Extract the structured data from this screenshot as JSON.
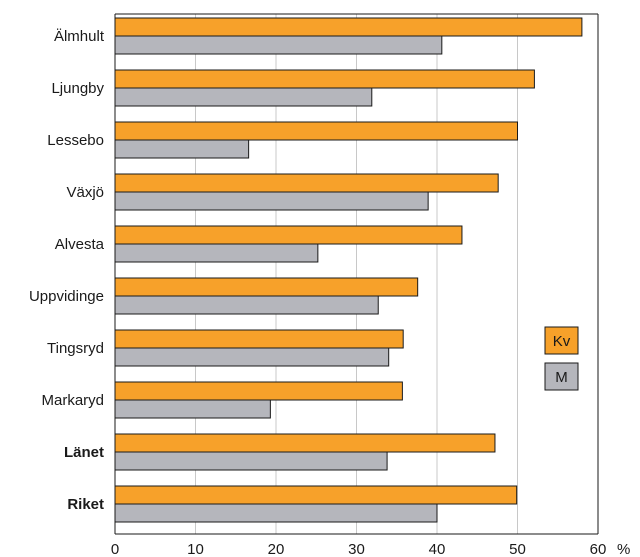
{
  "chart_data": {
    "type": "bar",
    "orientation": "horizontal",
    "categories": [
      "Älmhult",
      "Ljungby",
      "Lessebo",
      "Växjö",
      "Alvesta",
      "Uppvidinge",
      "Tingsryd",
      "Markaryd",
      "Länet",
      "Riket"
    ],
    "bold_categories": [
      "Länet",
      "Riket"
    ],
    "series": [
      {
        "name": "Kv",
        "color": "#f7a12a",
        "values": [
          58.0,
          52.1,
          50.0,
          47.6,
          43.1,
          37.6,
          35.8,
          35.7,
          47.2,
          49.9
        ]
      },
      {
        "name": "M",
        "color": "#b5b6bc",
        "values": [
          40.6,
          31.9,
          16.6,
          38.9,
          25.2,
          32.7,
          34.0,
          19.3,
          33.8,
          40.0
        ]
      }
    ],
    "xlim": [
      0,
      60
    ],
    "xticks": [
      "0",
      "10",
      "20",
      "30",
      "40",
      "50",
      "60"
    ],
    "x_unit": "%",
    "grid": true,
    "legend_position": "right"
  }
}
